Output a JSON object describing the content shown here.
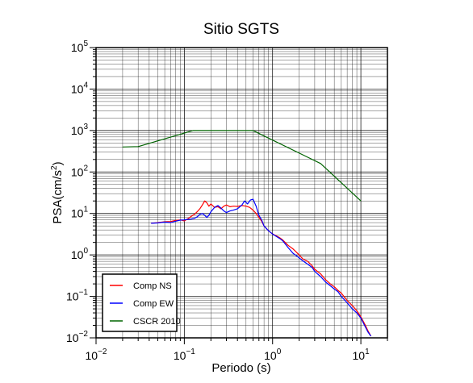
{
  "chart_data": {
    "type": "line",
    "title": "Sitio SGTS",
    "xlabel": "Periodo (s)",
    "ylabel": "PSA(cm/s2)",
    "ylabel_parts": {
      "base": "PSA(cm/s",
      "sup": "2",
      "tail": ")"
    },
    "xscale": "log",
    "yscale": "log",
    "xlim": [
      0.01,
      20
    ],
    "ylim": [
      0.01,
      100000
    ],
    "grid": true,
    "legend_position": "bottom-left",
    "x_ticks": [
      {
        "value": 0.01,
        "base": "10",
        "exp": "−2"
      },
      {
        "value": 0.1,
        "base": "10",
        "exp": "−1"
      },
      {
        "value": 1,
        "base": "10",
        "exp": "0"
      },
      {
        "value": 10,
        "base": "10",
        "exp": "1"
      }
    ],
    "y_ticks": [
      {
        "value": 0.01,
        "base": "10",
        "exp": "−2"
      },
      {
        "value": 0.1,
        "base": "10",
        "exp": "−1"
      },
      {
        "value": 1,
        "base": "10",
        "exp": "0"
      },
      {
        "value": 10,
        "base": "10",
        "exp": "1"
      },
      {
        "value": 100,
        "base": "10",
        "exp": "2"
      },
      {
        "value": 1000,
        "base": "10",
        "exp": "3"
      },
      {
        "value": 10000,
        "base": "10",
        "exp": "4"
      },
      {
        "value": 100000,
        "base": "10",
        "exp": "5"
      }
    ],
    "series": [
      {
        "name": "Comp NS",
        "color": "#ff0000",
        "x": [
          0.042,
          0.05,
          0.06,
          0.07,
          0.08,
          0.09,
          0.1,
          0.11,
          0.12,
          0.13,
          0.14,
          0.15,
          0.16,
          0.17,
          0.18,
          0.19,
          0.2,
          0.22,
          0.24,
          0.26,
          0.28,
          0.3,
          0.33,
          0.36,
          0.4,
          0.45,
          0.5,
          0.55,
          0.6,
          0.65,
          0.7,
          0.75,
          0.8,
          0.9,
          1.0,
          1.1,
          1.2,
          1.3,
          1.5,
          1.7,
          2.0,
          2.2,
          2.5,
          2.8,
          3.0,
          3.5,
          4.0,
          4.5,
          5.0,
          5.5,
          6.0,
          7.0,
          8.0,
          9.0,
          10.0,
          11.0,
          12.0,
          13.0
        ],
        "y": [
          5.8,
          6.0,
          6.3,
          6.4,
          6.8,
          7.0,
          6.6,
          7.5,
          8.5,
          9.5,
          11.0,
          13.0,
          16.0,
          20.0,
          18.0,
          15.0,
          17.0,
          14.0,
          14.5,
          13.0,
          15.0,
          16.0,
          14.5,
          15.0,
          14.8,
          15.5,
          15.0,
          14.0,
          12.0,
          10.0,
          8.0,
          6.5,
          5.0,
          3.8,
          3.2,
          2.9,
          2.6,
          2.3,
          1.7,
          1.4,
          1.0,
          0.8,
          0.7,
          0.55,
          0.45,
          0.35,
          0.25,
          0.2,
          0.17,
          0.14,
          0.12,
          0.08,
          0.06,
          0.045,
          0.032,
          0.022,
          0.015,
          0.011
        ]
      },
      {
        "name": "Comp EW",
        "color": "#0000ff",
        "x": [
          0.042,
          0.05,
          0.06,
          0.07,
          0.08,
          0.09,
          0.1,
          0.11,
          0.12,
          0.13,
          0.14,
          0.15,
          0.16,
          0.17,
          0.18,
          0.19,
          0.2,
          0.22,
          0.24,
          0.26,
          0.28,
          0.3,
          0.33,
          0.36,
          0.4,
          0.45,
          0.48,
          0.52,
          0.56,
          0.6,
          0.65,
          0.7,
          0.75,
          0.8,
          0.9,
          1.0,
          1.1,
          1.2,
          1.3,
          1.5,
          1.7,
          2.0,
          2.2,
          2.5,
          2.8,
          3.0,
          3.5,
          4.0,
          4.5,
          5.0,
          5.5,
          6.0,
          7.0,
          8.0,
          9.0,
          10.0,
          11.0,
          12.0,
          13.0
        ],
        "y": [
          5.8,
          5.9,
          6.2,
          6.0,
          6.5,
          6.9,
          7.0,
          7.2,
          7.3,
          7.6,
          8.3,
          9.5,
          10.0,
          9.0,
          8.0,
          9.0,
          11.0,
          14.0,
          15.5,
          13.5,
          11.5,
          10.5,
          11.5,
          12.0,
          13.0,
          16.0,
          20.0,
          17.0,
          21.0,
          22.0,
          15.0,
          9.0,
          7.0,
          5.0,
          3.8,
          3.2,
          2.8,
          2.5,
          2.2,
          1.5,
          1.1,
          0.85,
          0.72,
          0.6,
          0.5,
          0.4,
          0.3,
          0.22,
          0.18,
          0.15,
          0.13,
          0.1,
          0.07,
          0.05,
          0.04,
          0.03,
          0.02,
          0.014,
          0.011
        ]
      },
      {
        "name": "CSCR 2010",
        "color": "#006400",
        "x": [
          0.02,
          0.03,
          0.125,
          0.6,
          3.5,
          10
        ],
        "y": [
          400,
          410,
          1000,
          1000,
          160,
          20
        ]
      }
    ]
  }
}
